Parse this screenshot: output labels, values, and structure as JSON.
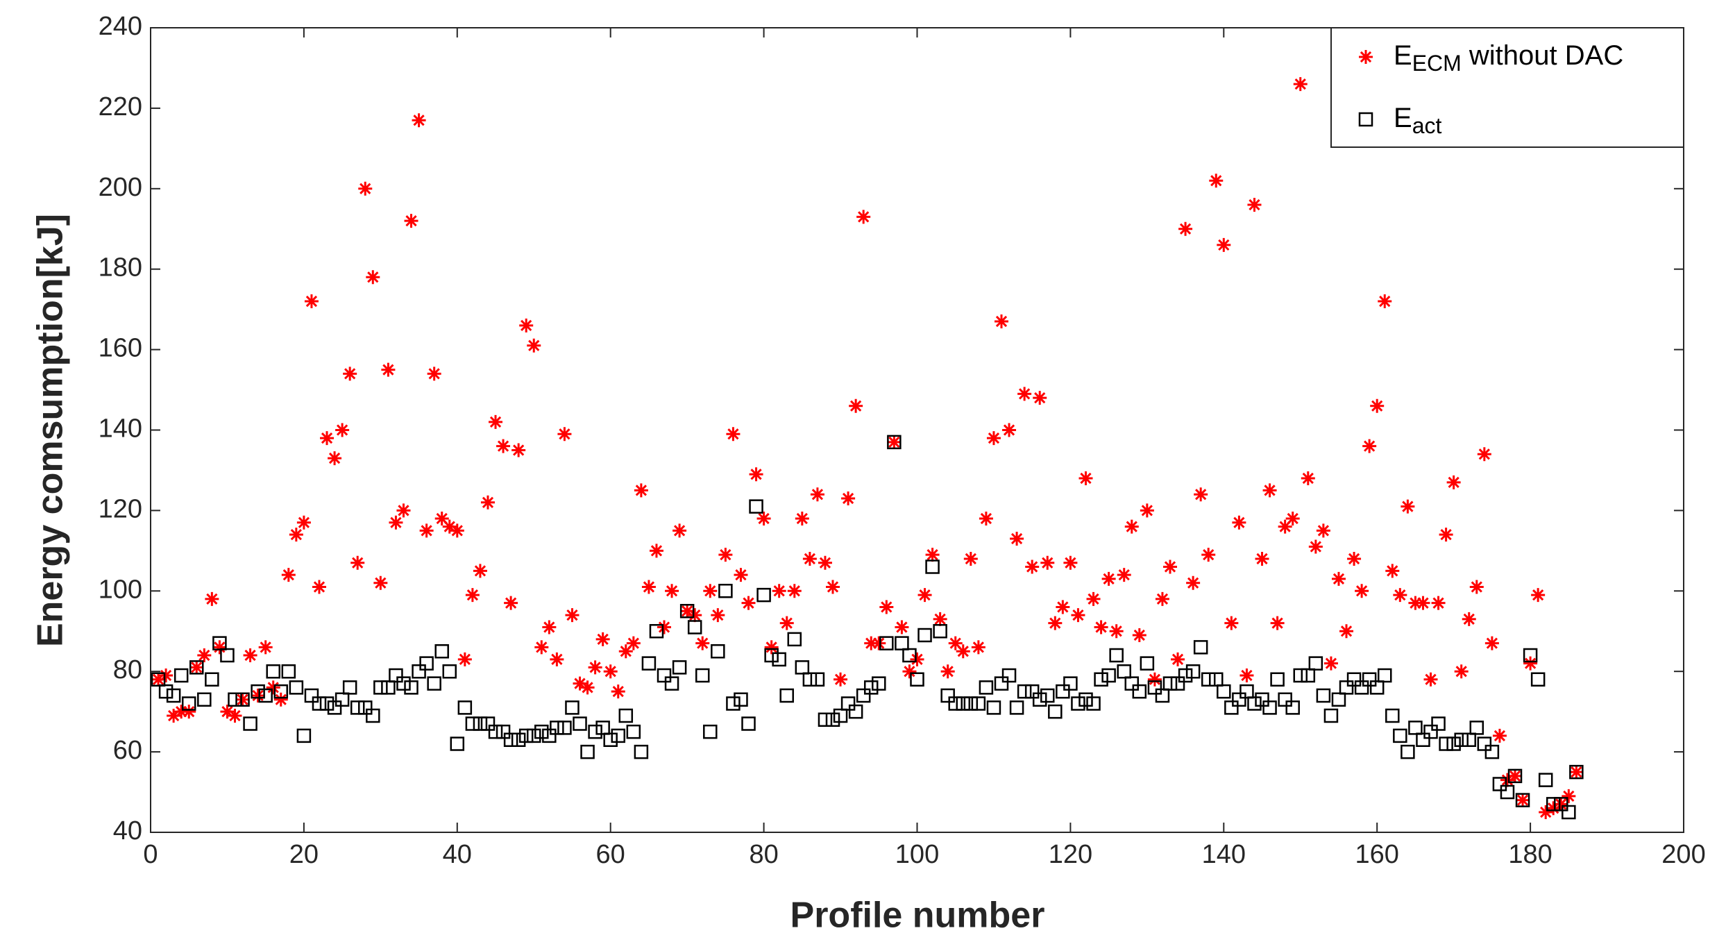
{
  "chart_data": {
    "type": "scatter",
    "xlabel": "Profile number",
    "ylabel": "Energy comsumption[kJ]",
    "xlim": [
      0,
      200
    ],
    "xticks": [
      0,
      20,
      40,
      60,
      80,
      100,
      120,
      140,
      160,
      180,
      200
    ],
    "ylim": [
      40,
      240
    ],
    "yticks": [
      40,
      60,
      80,
      100,
      120,
      140,
      160,
      180,
      200,
      220,
      240
    ],
    "legend": "upper right",
    "x": [
      1,
      2,
      3,
      4,
      5,
      6,
      7,
      8,
      9,
      10,
      11,
      12,
      13,
      14,
      15,
      16,
      17,
      18,
      19,
      20,
      21,
      22,
      23,
      24,
      25,
      26,
      27,
      28,
      29,
      30,
      31,
      32,
      33,
      34,
      35,
      36,
      37,
      38,
      39,
      40,
      41,
      42,
      43,
      44,
      45,
      46,
      47,
      48,
      49,
      50,
      51,
      52,
      53,
      54,
      55,
      56,
      57,
      58,
      59,
      60,
      61,
      62,
      63,
      64,
      65,
      66,
      67,
      68,
      69,
      70,
      71,
      72,
      73,
      74,
      75,
      76,
      77,
      78,
      79,
      80,
      81,
      82,
      83,
      84,
      85,
      86,
      87,
      88,
      89,
      90,
      91,
      92,
      93,
      94,
      95,
      96,
      97,
      98,
      99,
      100,
      101,
      102,
      103,
      104,
      105,
      106,
      107,
      108,
      109,
      110,
      111,
      112,
      113,
      114,
      115,
      116,
      117,
      118,
      119,
      120,
      121,
      122,
      123,
      124,
      125,
      126,
      127,
      128,
      129,
      130,
      131,
      132,
      133,
      134,
      135,
      136,
      137,
      138,
      139,
      140,
      141,
      142,
      143,
      144,
      145,
      146,
      147,
      148,
      149,
      150,
      151,
      152,
      153,
      154,
      155,
      156,
      157,
      158,
      159,
      160,
      161,
      162,
      163,
      164,
      165,
      166,
      167,
      168,
      169,
      170,
      171,
      172,
      173,
      174,
      175,
      176,
      177,
      178,
      179,
      180,
      181,
      182,
      183,
      184,
      185,
      186
    ],
    "series": [
      {
        "label": {
          "base": "E",
          "sub": "ECM",
          "rest": " without DAC"
        },
        "marker": "asterisk",
        "color": "#ff0000",
        "values": [
          78,
          79,
          69,
          70,
          70,
          81,
          84,
          98,
          86,
          70,
          69,
          73,
          84,
          74,
          86,
          76,
          73,
          104,
          114,
          117,
          172,
          101,
          138,
          133,
          140,
          154,
          107,
          200,
          178,
          102,
          155,
          117,
          120,
          192,
          217,
          115,
          154,
          118,
          116,
          115,
          83,
          99,
          105,
          122,
          142,
          136,
          97,
          135,
          166,
          161,
          86,
          91,
          83,
          139,
          94,
          77,
          76,
          81,
          88,
          80,
          75,
          85,
          87,
          125,
          101,
          110,
          91,
          100,
          115,
          95,
          94,
          87,
          100,
          94,
          109,
          139,
          104,
          97,
          129,
          118,
          86,
          100,
          92,
          100,
          118,
          108,
          124,
          107,
          101,
          78,
          123,
          146,
          193,
          87,
          87,
          96,
          137,
          91,
          80,
          83,
          99,
          109,
          93,
          80,
          87,
          85,
          108,
          86,
          118,
          138,
          167,
          140,
          113,
          149,
          106,
          148,
          107,
          92,
          96,
          107,
          94,
          128,
          98,
          91,
          103,
          90,
          104,
          116,
          89,
          120,
          78,
          98,
          106,
          83,
          190,
          102,
          124,
          109,
          202,
          186,
          92,
          117,
          79,
          196,
          108,
          125,
          92,
          116,
          118,
          226,
          128,
          111,
          115,
          82,
          103,
          90,
          108,
          100,
          136,
          146,
          172,
          105,
          99,
          121,
          97,
          97,
          78,
          97,
          114,
          127,
          80,
          93,
          101,
          134,
          87,
          64,
          53,
          54,
          48,
          82,
          99,
          45,
          46,
          47,
          49,
          55
        ]
      },
      {
        "label": {
          "base": "E",
          "sub": "act",
          "rest": ""
        },
        "marker": "square",
        "color": "#000000",
        "values": [
          78,
          75,
          74,
          79,
          72,
          81,
          73,
          78,
          87,
          84,
          73,
          73,
          67,
          75,
          74,
          80,
          75,
          80,
          76,
          64,
          74,
          72,
          72,
          71,
          73,
          76,
          71,
          71,
          69,
          76,
          76,
          79,
          77,
          76,
          80,
          82,
          77,
          85,
          80,
          62,
          71,
          67,
          67,
          67,
          65,
          65,
          63,
          63,
          64,
          64,
          65,
          64,
          66,
          66,
          71,
          67,
          60,
          65,
          66,
          63,
          64,
          69,
          65,
          60,
          82,
          90,
          79,
          77,
          81,
          95,
          91,
          79,
          65,
          85,
          100,
          72,
          73,
          67,
          121,
          99,
          84,
          83,
          74,
          88,
          81,
          78,
          78,
          68,
          68,
          69,
          72,
          70,
          74,
          76,
          77,
          87,
          137,
          87,
          84,
          78,
          89,
          106,
          90,
          74,
          72,
          72,
          72,
          72,
          76,
          71,
          77,
          79,
          71,
          75,
          75,
          73,
          74,
          70,
          75,
          77,
          72,
          73,
          72,
          78,
          79,
          84,
          80,
          77,
          75,
          82,
          76,
          74,
          77,
          77,
          79,
          80,
          86,
          78,
          78,
          75,
          71,
          73,
          75,
          72,
          73,
          71,
          78,
          73,
          71,
          79,
          79,
          82,
          74,
          69,
          73,
          76,
          78,
          76,
          78,
          76,
          79,
          69,
          64,
          60,
          66,
          63,
          65,
          67,
          62,
          62,
          63,
          63,
          66,
          62,
          60,
          52,
          50,
          54,
          48,
          84,
          78,
          53,
          47,
          47,
          45,
          55
        ]
      }
    ]
  }
}
